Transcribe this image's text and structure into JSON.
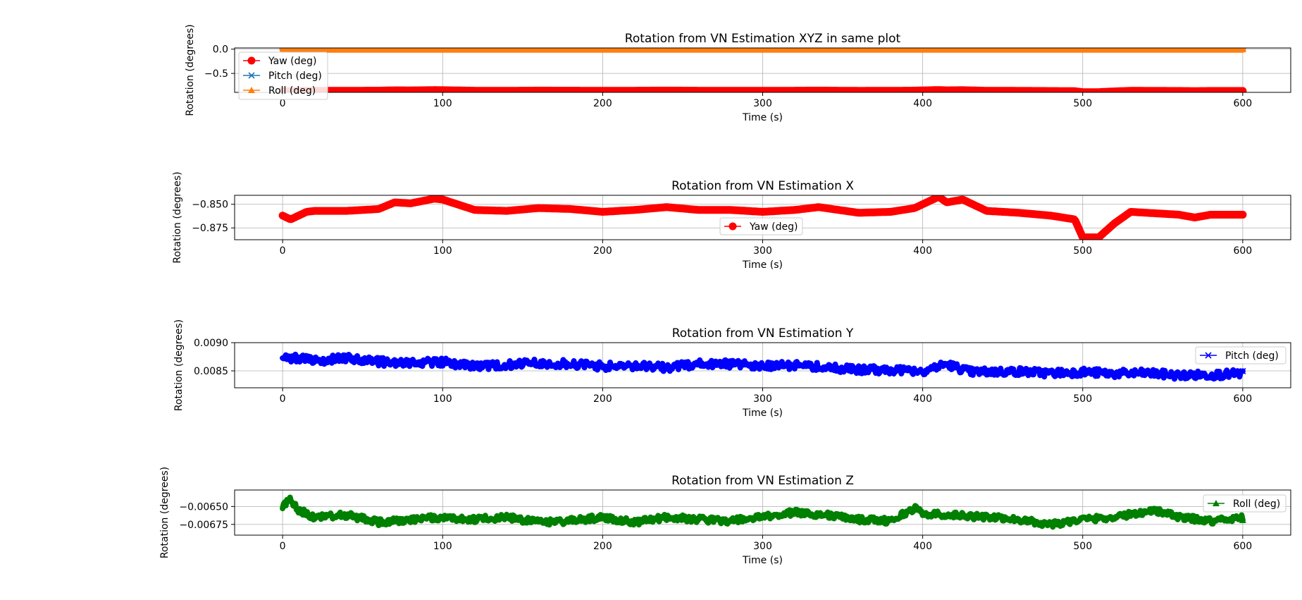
{
  "chart_data": [
    {
      "type": "line",
      "title": "Rotation from VN Estimation XYZ in same plot",
      "xlabel": "Time (s)",
      "ylabel": "Rotation (degrees)",
      "xlim": [
        -30,
        630
      ],
      "ylim": [
        -0.89,
        0.025
      ],
      "xticks": [
        "0",
        "100",
        "200",
        "300",
        "400",
        "500",
        "600"
      ],
      "yticks": [
        "0.0",
        "−0.5"
      ],
      "ytick_values": [
        0.0,
        -0.5
      ],
      "grid": true,
      "legend": "upper-left",
      "series": [
        {
          "name": "Yaw (deg)",
          "color": "#ff0000",
          "marker": "circle",
          "x": [
            0,
            5,
            10,
            15,
            20,
            40,
            60,
            70,
            80,
            95,
            100,
            120,
            140,
            160,
            180,
            200,
            220,
            240,
            260,
            280,
            300,
            320,
            335,
            360,
            380,
            395,
            410,
            415,
            425,
            440,
            460,
            480,
            495,
            500,
            510,
            520,
            530,
            540,
            560,
            570,
            580,
            600
          ],
          "y": [
            -0.862,
            -0.866,
            -0.862,
            -0.858,
            -0.857,
            -0.857,
            -0.855,
            -0.848,
            -0.849,
            -0.844,
            -0.845,
            -0.856,
            -0.857,
            -0.854,
            -0.855,
            -0.858,
            -0.856,
            -0.853,
            -0.856,
            -0.856,
            -0.858,
            -0.856,
            -0.853,
            -0.859,
            -0.858,
            -0.854,
            -0.842,
            -0.848,
            -0.845,
            -0.857,
            -0.859,
            -0.862,
            -0.866,
            -0.885,
            -0.885,
            -0.87,
            -0.858,
            -0.859,
            -0.861,
            -0.864,
            -0.861,
            -0.861
          ]
        },
        {
          "name": "Pitch (deg)",
          "color": "#1f77b4",
          "marker": "x",
          "x": [
            0,
            600
          ],
          "y": [
            0.0086,
            0.0084
          ]
        },
        {
          "name": "Roll (deg)",
          "color": "#ff7f0e",
          "marker": "triangle",
          "x": [
            0,
            600
          ],
          "y": [
            -0.0066,
            -0.0066
          ]
        }
      ]
    },
    {
      "type": "line",
      "title": "Rotation from VN Estimation X",
      "xlabel": "Time (s)",
      "ylabel": "Rotation (degrees)",
      "xlim": [
        -30,
        630
      ],
      "ylim": [
        -0.8875,
        -0.8405
      ],
      "xticks": [
        "0",
        "100",
        "200",
        "300",
        "400",
        "500",
        "600"
      ],
      "yticks": [
        "−0.850",
        "−0.875"
      ],
      "ytick_values": [
        -0.85,
        -0.875
      ],
      "grid": true,
      "legend": "lower-center",
      "series": [
        {
          "name": "Yaw (deg)",
          "color": "#ff0000",
          "marker": "circle",
          "x": [
            0,
            5,
            10,
            15,
            20,
            40,
            60,
            70,
            80,
            95,
            100,
            120,
            140,
            160,
            180,
            200,
            220,
            240,
            260,
            280,
            300,
            320,
            335,
            360,
            380,
            395,
            410,
            415,
            425,
            440,
            460,
            480,
            495,
            500,
            510,
            520,
            530,
            540,
            560,
            570,
            580,
            600
          ],
          "y": [
            -0.862,
            -0.866,
            -0.862,
            -0.858,
            -0.857,
            -0.857,
            -0.855,
            -0.848,
            -0.849,
            -0.844,
            -0.845,
            -0.856,
            -0.857,
            -0.854,
            -0.855,
            -0.858,
            -0.856,
            -0.853,
            -0.856,
            -0.856,
            -0.858,
            -0.856,
            -0.853,
            -0.859,
            -0.858,
            -0.854,
            -0.842,
            -0.848,
            -0.845,
            -0.857,
            -0.859,
            -0.862,
            -0.866,
            -0.885,
            -0.885,
            -0.87,
            -0.858,
            -0.859,
            -0.861,
            -0.864,
            -0.861,
            -0.861
          ]
        }
      ]
    },
    {
      "type": "line",
      "title": "Rotation from VN Estimation Y",
      "xlabel": "Time (s)",
      "ylabel": "Rotation (degrees)",
      "xlim": [
        -30,
        630
      ],
      "ylim": [
        0.0082,
        0.009
      ],
      "xticks": [
        "0",
        "100",
        "200",
        "300",
        "400",
        "500",
        "600"
      ],
      "yticks": [
        "0.0090",
        "0.0085"
      ],
      "ytick_values": [
        0.009,
        0.0085
      ],
      "grid": true,
      "legend": "upper-right",
      "series": [
        {
          "name": "Pitch (deg)",
          "color": "#0000ff",
          "marker": "x",
          "x": [
            0,
            10,
            20,
            40,
            60,
            80,
            100,
            120,
            140,
            160,
            180,
            200,
            220,
            240,
            260,
            280,
            300,
            320,
            340,
            360,
            380,
            400,
            415,
            430,
            460,
            480,
            500,
            520,
            540,
            560,
            580,
            600
          ],
          "y": [
            0.00875,
            0.00872,
            0.00868,
            0.00872,
            0.00866,
            0.00864,
            0.00866,
            0.00858,
            0.0086,
            0.00864,
            0.00862,
            0.00858,
            0.00859,
            0.00856,
            0.00862,
            0.00862,
            0.00858,
            0.0086,
            0.00856,
            0.00852,
            0.00852,
            0.0085,
            0.00862,
            0.00848,
            0.00849,
            0.00846,
            0.00848,
            0.00845,
            0.00846,
            0.00842,
            0.00843,
            0.00845
          ]
        }
      ]
    },
    {
      "type": "line",
      "title": "Rotation from VN Estimation Z",
      "xlabel": "Time (s)",
      "ylabel": "Rotation (degrees)",
      "xlim": [
        -30,
        630
      ],
      "ylim": [
        -0.0069,
        -0.00627
      ],
      "xticks": [
        "0",
        "100",
        "200",
        "300",
        "400",
        "500",
        "600"
      ],
      "yticks": [
        "−0.00650",
        "−0.00675"
      ],
      "ytick_values": [
        -0.0065,
        -0.00675
      ],
      "grid": true,
      "legend": "upper-right",
      "series": [
        {
          "name": "Roll (deg)",
          "color": "#008000",
          "marker": "triangle",
          "x": [
            0,
            5,
            10,
            20,
            40,
            60,
            80,
            100,
            120,
            140,
            160,
            180,
            200,
            220,
            240,
            260,
            280,
            300,
            320,
            340,
            360,
            380,
            395,
            400,
            420,
            440,
            460,
            480,
            500,
            520,
            545,
            560,
            580,
            600
          ],
          "y": [
            -0.0065,
            -0.0064,
            -0.00655,
            -0.00665,
            -0.00662,
            -0.00672,
            -0.00668,
            -0.00665,
            -0.00668,
            -0.00665,
            -0.00672,
            -0.0067,
            -0.00665,
            -0.00672,
            -0.00665,
            -0.00668,
            -0.0067,
            -0.00665,
            -0.00658,
            -0.00662,
            -0.00668,
            -0.0067,
            -0.00652,
            -0.0066,
            -0.00662,
            -0.00665,
            -0.00668,
            -0.00675,
            -0.00668,
            -0.00665,
            -0.00655,
            -0.00665,
            -0.0067,
            -0.00665
          ]
        }
      ]
    }
  ]
}
